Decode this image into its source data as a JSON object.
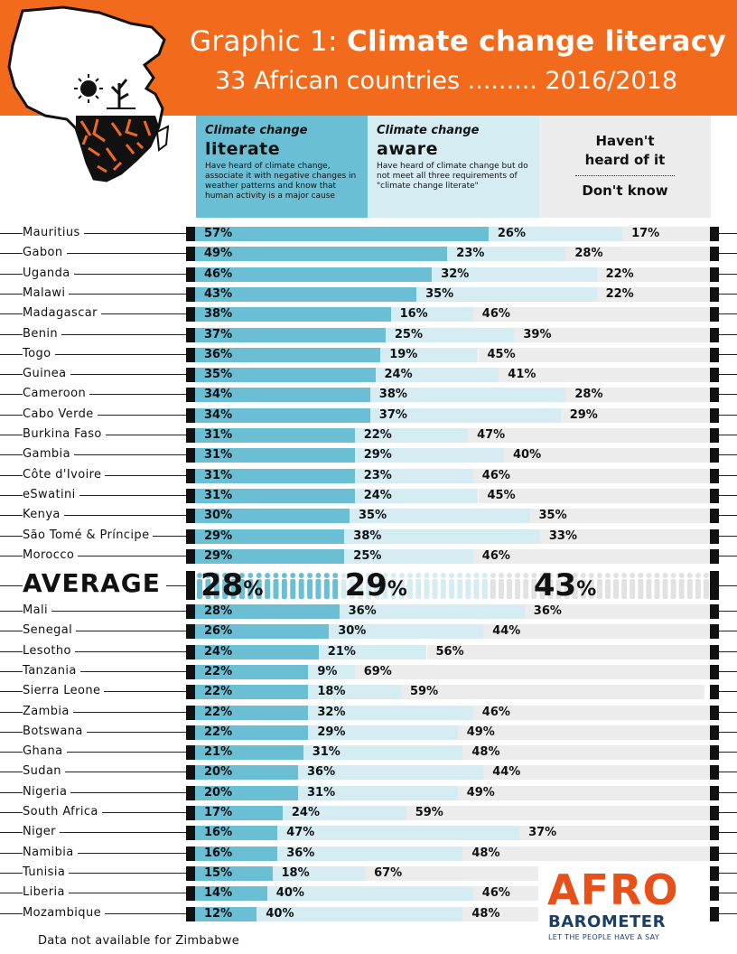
{
  "header": {
    "title_light": "Graphic 1: ",
    "title_bold": "Climate change literacy",
    "subtitle": "33 African countries ......... 2016/2018"
  },
  "legend": {
    "literate": {
      "small": "Climate change",
      "big": "literate",
      "desc": "Have heard of climate change, associate it with negative changes in weather patterns and know that human activity is a major cause"
    },
    "aware": {
      "small": "Climate change",
      "big": "aware",
      "desc": "Have heard of climate change but do not meet all three requirements of \"climate change literate\""
    },
    "unaware": {
      "line1": "Haven't",
      "line2": "heard of it",
      "line3": "Don't know"
    }
  },
  "colors": {
    "orange": "#f26a1b",
    "literate": "#6bbfd4",
    "aware": "#d5ecf2",
    "unaware": "#ececec"
  },
  "chart_data": {
    "type": "bar",
    "stacked": true,
    "title": "Climate change literacy",
    "subtitle": "33 African countries 2016/2018",
    "unit": "%",
    "series_names": [
      "Climate change literate",
      "Climate change aware",
      "Haven't heard of it / Don't know"
    ],
    "rows_top": [
      {
        "country": "Mauritius",
        "literate": 57,
        "aware": 26,
        "unaware": 17
      },
      {
        "country": "Gabon",
        "literate": 49,
        "aware": 23,
        "unaware": 28
      },
      {
        "country": "Uganda",
        "literate": 46,
        "aware": 32,
        "unaware": 22
      },
      {
        "country": "Malawi",
        "literate": 43,
        "aware": 35,
        "unaware": 22
      },
      {
        "country": "Madagascar",
        "literate": 38,
        "aware": 16,
        "unaware": 46
      },
      {
        "country": "Benin",
        "literate": 37,
        "aware": 25,
        "unaware": 39
      },
      {
        "country": "Togo",
        "literate": 36,
        "aware": 19,
        "unaware": 45
      },
      {
        "country": "Guinea",
        "literate": 35,
        "aware": 24,
        "unaware": 41
      },
      {
        "country": "Cameroon",
        "literate": 34,
        "aware": 38,
        "unaware": 28
      },
      {
        "country": "Cabo Verde",
        "literate": 34,
        "aware": 37,
        "unaware": 29
      },
      {
        "country": "Burkina Faso",
        "literate": 31,
        "aware": 22,
        "unaware": 47
      },
      {
        "country": "Gambia",
        "literate": 31,
        "aware": 29,
        "unaware": 40
      },
      {
        "country": "Côte d'Ivoire",
        "literate": 31,
        "aware": 23,
        "unaware": 46
      },
      {
        "country": "eSwatini",
        "literate": 31,
        "aware": 24,
        "unaware": 45
      },
      {
        "country": "Kenya",
        "literate": 30,
        "aware": 35,
        "unaware": 35
      },
      {
        "country": "São Tomé & Príncipe",
        "literate": 29,
        "aware": 38,
        "unaware": 33
      },
      {
        "country": "Morocco",
        "literate": 29,
        "aware": 25,
        "unaware": 46
      }
    ],
    "average": {
      "label": "AVERAGE",
      "literate": 28,
      "aware": 29,
      "unaware": 43
    },
    "rows_bottom": [
      {
        "country": "Mali",
        "literate": 28,
        "aware": 36,
        "unaware": 36
      },
      {
        "country": "Senegal",
        "literate": 26,
        "aware": 30,
        "unaware": 44
      },
      {
        "country": "Lesotho",
        "literate": 24,
        "aware": 21,
        "unaware": 56
      },
      {
        "country": "Tanzania",
        "literate": 22,
        "aware": 9,
        "unaware": 69
      },
      {
        "country": "Sierra Leone",
        "literate": 22,
        "aware": 18,
        "unaware": 59
      },
      {
        "country": "Zambia",
        "literate": 22,
        "aware": 32,
        "unaware": 46
      },
      {
        "country": "Botswana",
        "literate": 22,
        "aware": 29,
        "unaware": 49
      },
      {
        "country": "Ghana",
        "literate": 21,
        "aware": 31,
        "unaware": 48
      },
      {
        "country": "Sudan",
        "literate": 20,
        "aware": 36,
        "unaware": 44
      },
      {
        "country": "Nigeria",
        "literate": 20,
        "aware": 31,
        "unaware": 49
      },
      {
        "country": "South Africa",
        "literate": 17,
        "aware": 24,
        "unaware": 59
      },
      {
        "country": "Niger",
        "literate": 16,
        "aware": 47,
        "unaware": 37
      },
      {
        "country": "Namibia",
        "literate": 16,
        "aware": 36,
        "unaware": 48
      },
      {
        "country": "Tunisia",
        "literate": 15,
        "aware": 18,
        "unaware": 67
      },
      {
        "country": "Liberia",
        "literate": 14,
        "aware": 40,
        "unaware": 46
      },
      {
        "country": "Mozambique",
        "literate": 12,
        "aware": 40,
        "unaware": 48
      }
    ]
  },
  "footnote": "Data not available for Zimbabwe",
  "logo": {
    "afro": "AFRO",
    "barometer": "BAROMETER",
    "tagline": "LET THE PEOPLE HAVE A SAY"
  }
}
